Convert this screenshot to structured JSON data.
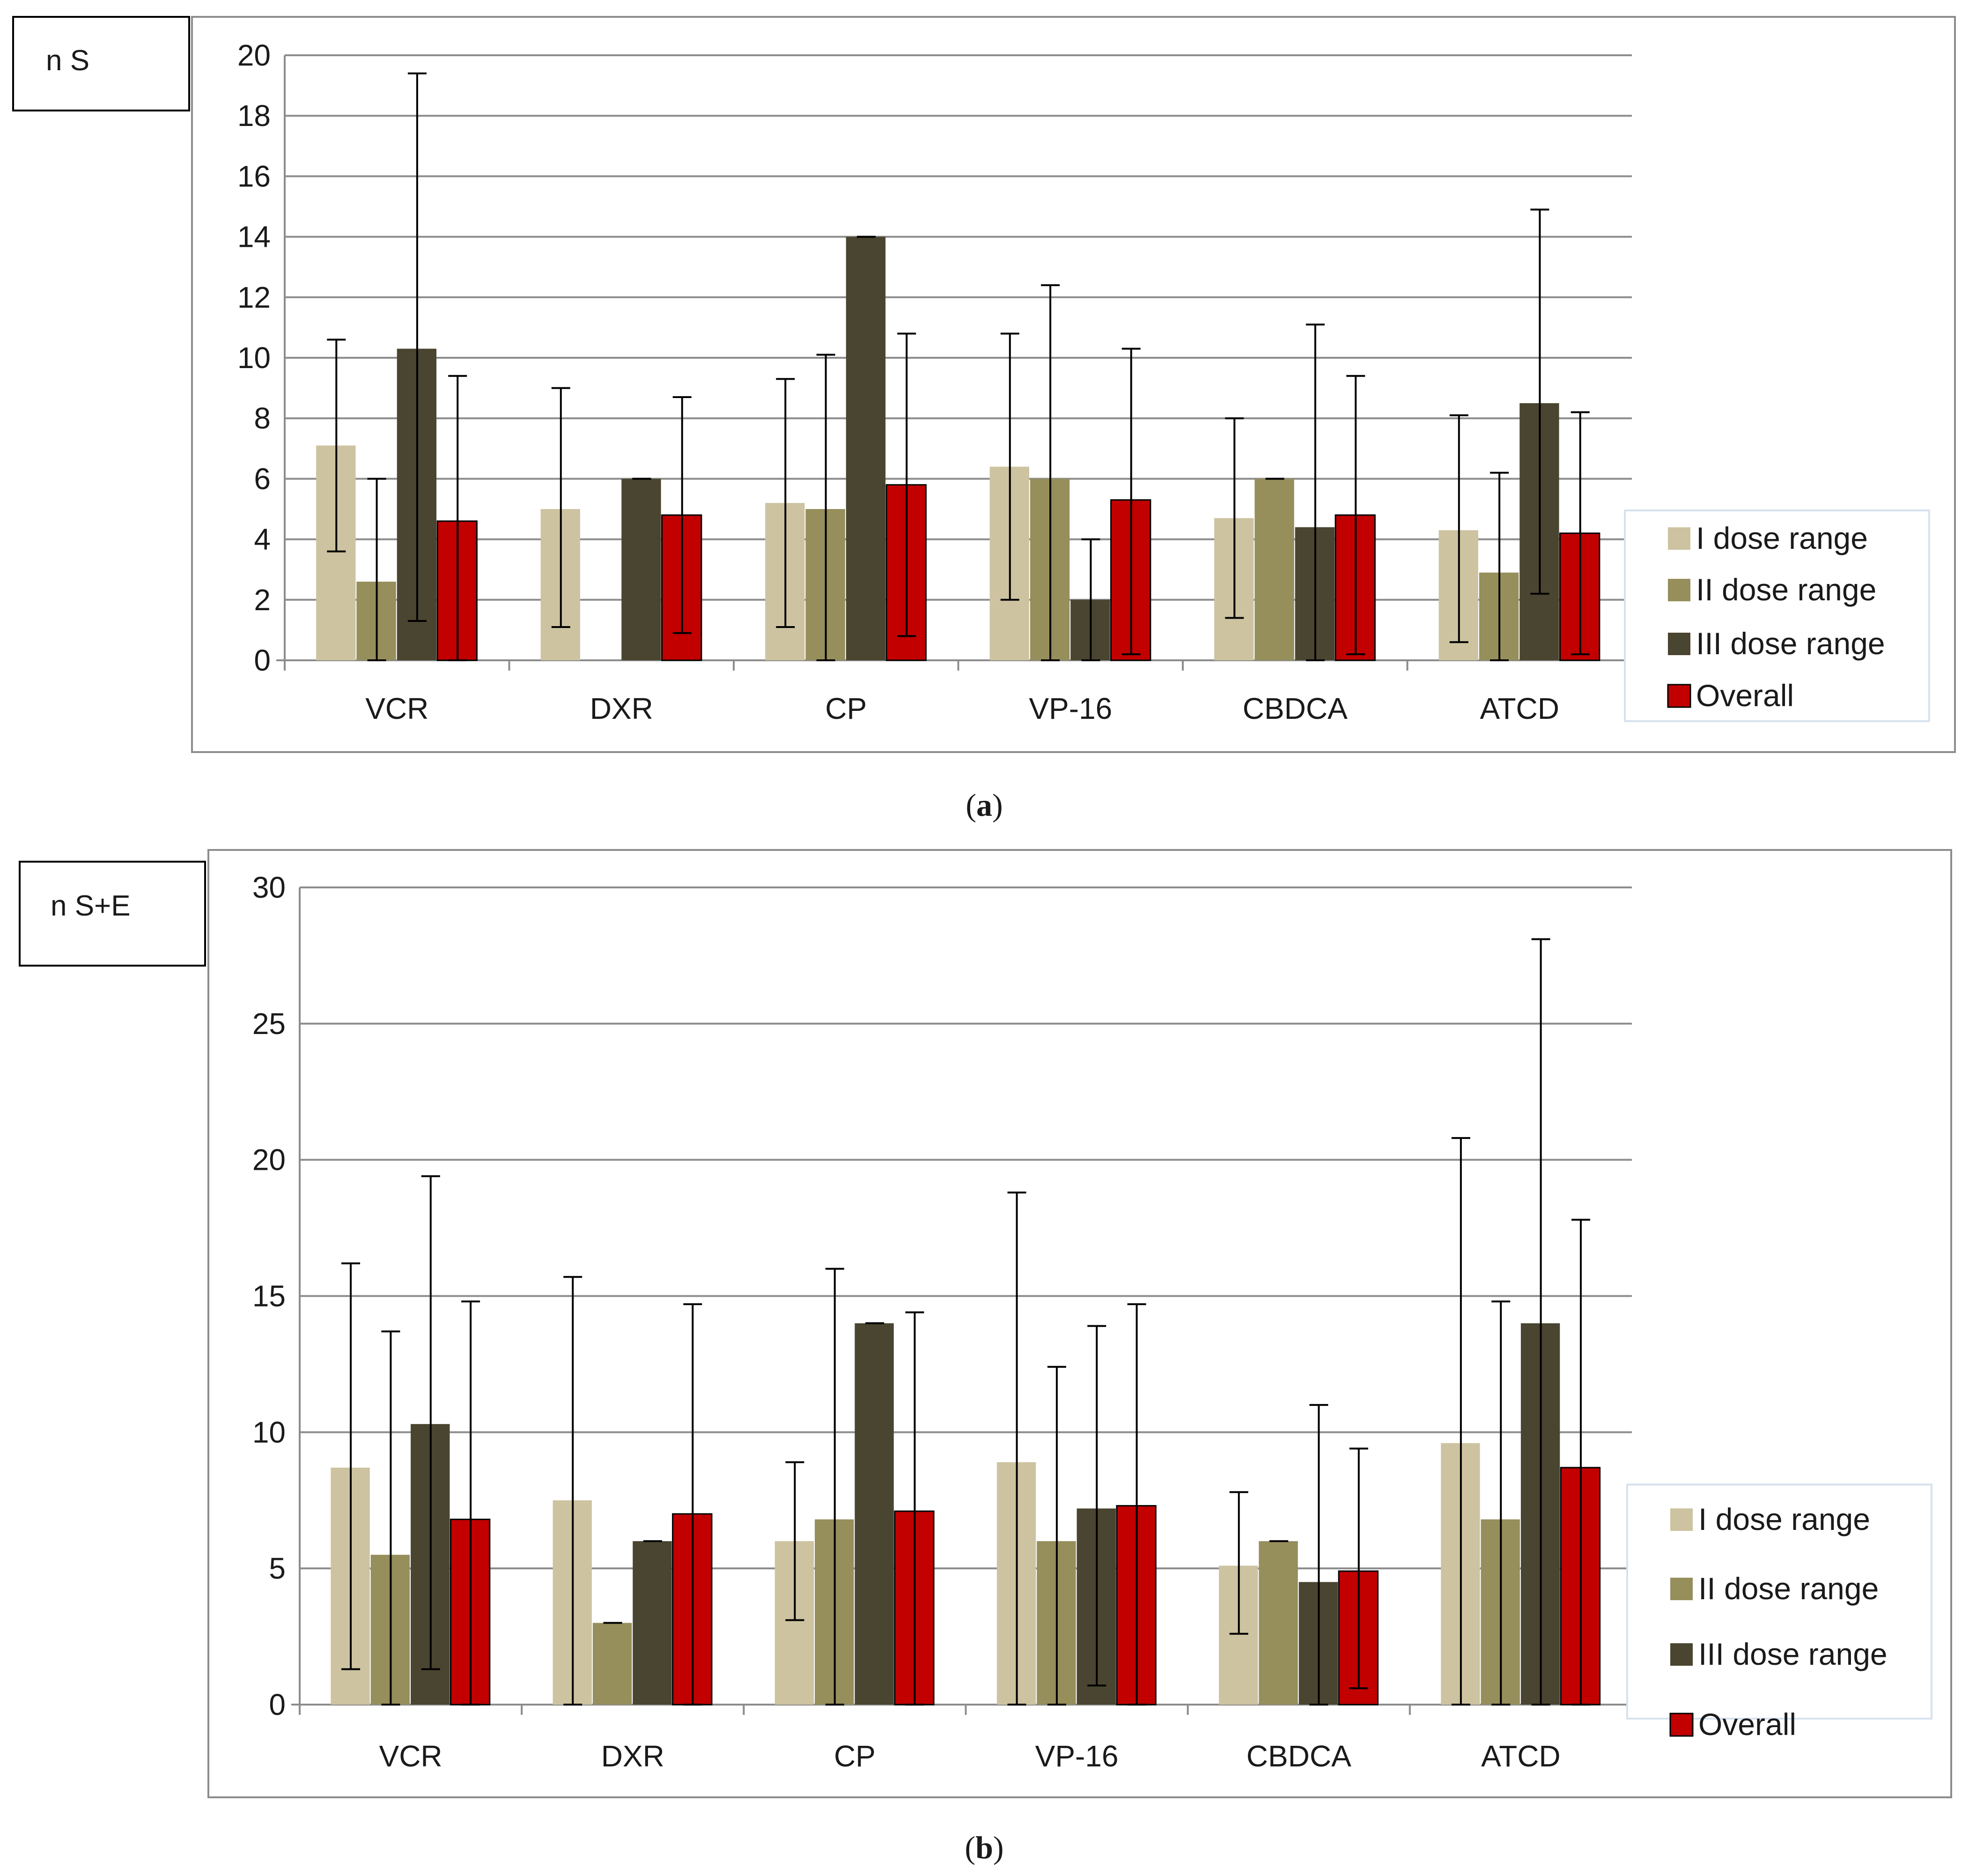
{
  "legend": {
    "items": [
      "I dose range",
      "II dose range",
      "III dose range",
      "Overall"
    ],
    "colors": [
      "#cdc3a0",
      "#968e5b",
      "#4a4530",
      "#c20000"
    ]
  },
  "chart_data": [
    {
      "type": "bar",
      "panel_label": "n S",
      "caption": "(a)",
      "caption_letter": "a",
      "ylim": [
        0,
        20
      ],
      "yticks": [
        0,
        2,
        4,
        6,
        8,
        10,
        12,
        14,
        16,
        18,
        20
      ],
      "grid": true,
      "legend_position": "right",
      "categories": [
        "VCR",
        "DXR",
        "CP",
        "VP-16",
        "CBDCA",
        "ATCD"
      ],
      "series": [
        {
          "name": "I dose range",
          "values": [
            7.1,
            5.0,
            5.2,
            6.4,
            4.7,
            4.3
          ],
          "err_high": [
            10.6,
            9.0,
            9.3,
            10.8,
            8.0,
            8.1
          ],
          "err_low": [
            3.6,
            1.1,
            1.1,
            2.0,
            1.4,
            0.6
          ]
        },
        {
          "name": "II dose range",
          "values": [
            2.6,
            null,
            5.0,
            6.0,
            6.0,
            2.9
          ],
          "err_high": [
            6.0,
            null,
            10.1,
            12.4,
            6.0,
            6.2
          ],
          "err_low": [
            0,
            null,
            0,
            0,
            6.0,
            0
          ]
        },
        {
          "name": "III dose range",
          "values": [
            10.3,
            6.0,
            14.0,
            2.0,
            4.4,
            8.5
          ],
          "err_high": [
            19.4,
            6.0,
            14.0,
            4.0,
            11.1,
            14.9
          ],
          "err_low": [
            1.3,
            6.0,
            14.0,
            0,
            0,
            2.2
          ]
        },
        {
          "name": "Overall",
          "values": [
            4.6,
            4.8,
            5.8,
            5.3,
            4.8,
            4.2
          ],
          "err_high": [
            9.4,
            8.7,
            10.8,
            10.3,
            9.4,
            8.2
          ],
          "err_low": [
            0,
            0.9,
            0.8,
            0.2,
            0.2,
            0.2
          ]
        }
      ]
    },
    {
      "type": "bar",
      "panel_label": "n S+E",
      "caption": "(b)",
      "caption_letter": "b",
      "ylim": [
        0,
        30
      ],
      "yticks": [
        0,
        5,
        10,
        15,
        20,
        25,
        30
      ],
      "grid": true,
      "legend_position": "right",
      "categories": [
        "VCR",
        "DXR",
        "CP",
        "VP-16",
        "CBDCA",
        "ATCD"
      ],
      "series": [
        {
          "name": "I dose range",
          "values": [
            8.7,
            7.5,
            6.0,
            8.9,
            5.1,
            9.6
          ],
          "err_high": [
            16.2,
            15.7,
            8.9,
            18.8,
            7.8,
            20.8
          ],
          "err_low": [
            1.3,
            0,
            3.1,
            0,
            2.6,
            0
          ]
        },
        {
          "name": "II dose range",
          "values": [
            5.5,
            3.0,
            6.8,
            6.0,
            6.0,
            6.8
          ],
          "err_high": [
            13.7,
            3.0,
            16.0,
            12.4,
            6.0,
            14.8
          ],
          "err_low": [
            0,
            3.0,
            0,
            0,
            6.0,
            0
          ]
        },
        {
          "name": "III dose range",
          "values": [
            10.3,
            6.0,
            14.0,
            7.2,
            4.5,
            14.0
          ],
          "err_high": [
            19.4,
            6.0,
            14.0,
            13.9,
            11.0,
            28.1
          ],
          "err_low": [
            1.3,
            6.0,
            14.0,
            0.7,
            0,
            0
          ]
        },
        {
          "name": "Overall",
          "values": [
            6.8,
            7.0,
            7.1,
            7.3,
            4.9,
            8.7
          ],
          "err_high": [
            14.8,
            14.7,
            14.4,
            14.7,
            9.4,
            17.8
          ],
          "err_low": [
            0,
            0,
            0,
            0,
            0.6,
            0
          ]
        }
      ]
    }
  ]
}
